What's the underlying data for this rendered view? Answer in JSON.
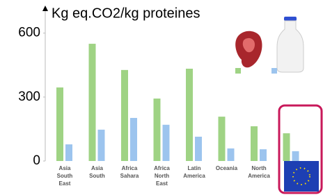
{
  "chart_data": {
    "type": "bar",
    "title": "Kg eq.CO2/kg proteines",
    "categories": [
      "Asia South East",
      "Asia South",
      "Africa Sahara",
      "Africa North East",
      "Latin America",
      "Oceania",
      "North America",
      null
    ],
    "series": [
      {
        "color": "#9fd384",
        "values": [
          345,
          550,
          427,
          293,
          433,
          208,
          163,
          130
        ]
      },
      {
        "color": "#9cc4ee",
        "values": [
          78,
          147,
          202,
          170,
          114,
          59,
          55,
          46
        ]
      }
    ],
    "ylim": [
      0,
      700
    ],
    "yticks": [
      0,
      300,
      600
    ],
    "grid": false
  }
}
